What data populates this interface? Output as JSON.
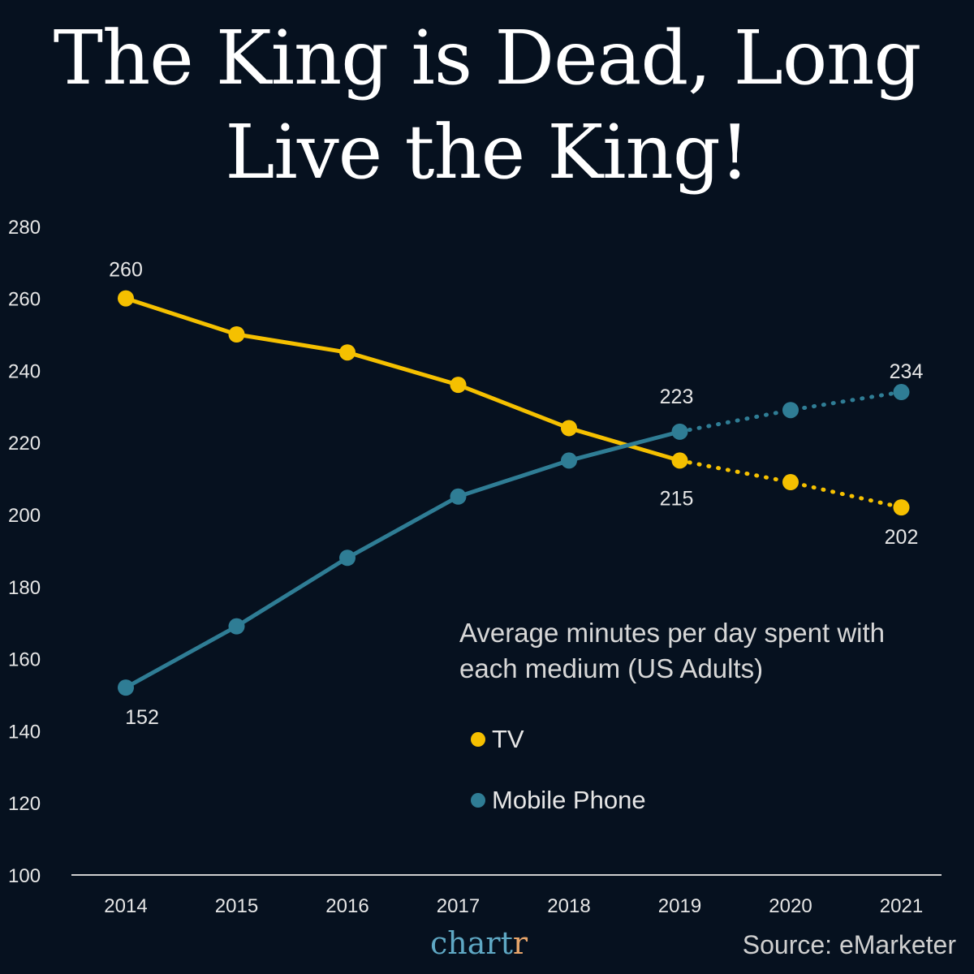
{
  "title": "The King is Dead, Long Live the King!",
  "legend": {
    "heading": "Average minutes per day spent with each medium (US Adults)",
    "items": [
      {
        "label": "TV",
        "color": "#f5c000"
      },
      {
        "label": "Mobile Phone",
        "color": "#2f7d95"
      }
    ]
  },
  "brand": {
    "main": "chart",
    "last": "r"
  },
  "source": "Source: eMarketer",
  "chart_data": {
    "type": "line",
    "categories": [
      "2014",
      "2015",
      "2016",
      "2017",
      "2018",
      "2019",
      "2020",
      "2021"
    ],
    "ylim": [
      100,
      280
    ],
    "yticks": [
      100,
      120,
      140,
      160,
      180,
      200,
      220,
      240,
      260,
      280
    ],
    "grid": false,
    "series": [
      {
        "name": "TV",
        "color": "#f5c000",
        "values": [
          260,
          250,
          245,
          236,
          224,
          215,
          209,
          202
        ],
        "projected_from": "2019",
        "labels": {
          "2014": "260",
          "2019": "215",
          "2021": "202"
        }
      },
      {
        "name": "Mobile Phone",
        "color": "#2f7d95",
        "values": [
          152,
          169,
          188,
          205,
          215,
          223,
          229,
          234
        ],
        "projected_from": "2019",
        "labels": {
          "2014": "152",
          "2019": "223",
          "2021": "234"
        }
      }
    ]
  }
}
